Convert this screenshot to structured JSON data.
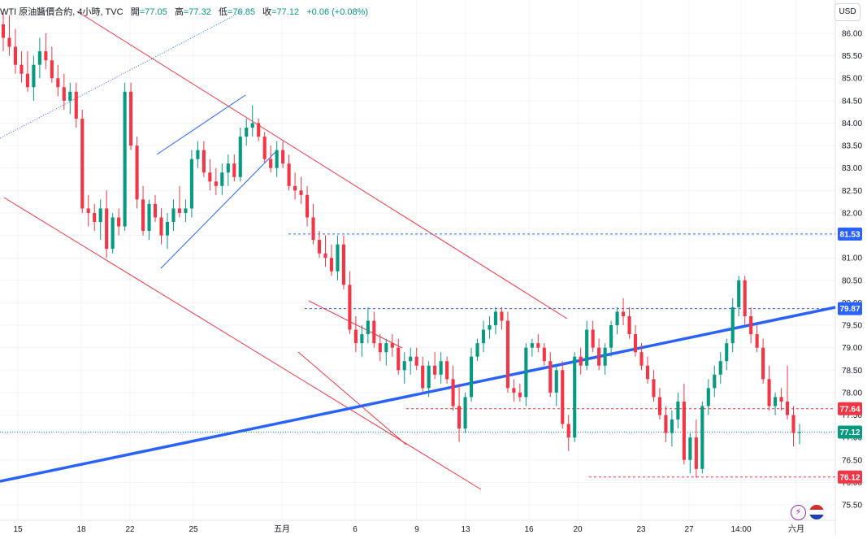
{
  "header": {
    "symbol": "WTI 原油醬價合約, 4小時, TVC",
    "open_label": "開",
    "open": "=77.05",
    "high_label": "高",
    "high": "=77.32",
    "low_label": "低",
    "low": "=76.85",
    "close_label": "收",
    "close": "=77.12",
    "change": "+0.06 (+0.08%)"
  },
  "currency_button": "USD",
  "colors": {
    "up": "#089981",
    "down": "#f23645",
    "trend": "#2962ff",
    "channel": "#f23645",
    "wedge": "#2962ff"
  },
  "icons": [
    "lightning-icon",
    "us-flag-icon"
  ],
  "chart_data": {
    "type": "candlestick",
    "y_ticks": [
      "86.00",
      "85.50",
      "85.00",
      "84.50",
      "84.00",
      "83.50",
      "83.00",
      "82.50",
      "82.00",
      "81.50",
      "81.00",
      "80.50",
      "80.00",
      "79.50",
      "79.00",
      "78.50",
      "78.00",
      "77.50",
      "77.00",
      "76.50",
      "76.00",
      "75.50"
    ],
    "x_ticks": [
      "15",
      "18",
      "22",
      "25",
      "五月",
      "6",
      "9",
      "13",
      "16",
      "20",
      "23",
      "27",
      "14:00",
      "六月"
    ],
    "price_badges": [
      {
        "label": "81.53",
        "value": 81.53,
        "color": "#2962ff",
        "line": "dashed"
      },
      {
        "label": "79.87",
        "value": 79.87,
        "color": "#2962ff",
        "line": "dashed"
      },
      {
        "label": "77.64",
        "value": 77.64,
        "color": "#f23645",
        "line": "dashed"
      },
      {
        "label": "77.12",
        "value": 77.12,
        "color": "#089981",
        "line": "dotted"
      },
      {
        "label": "76.12",
        "value": 76.12,
        "color": "#f23645",
        "line": "dashed"
      }
    ],
    "ylim": [
      75.3,
      86.6
    ],
    "grid": true,
    "candles_ohlc": [
      [
        86.2,
        86.5,
        85.6,
        85.9
      ],
      [
        85.9,
        86.4,
        85.5,
        85.7
      ],
      [
        85.7,
        86.1,
        85.1,
        85.3
      ],
      [
        85.3,
        85.6,
        84.9,
        85.1
      ],
      [
        85.1,
        85.6,
        84.7,
        84.8
      ],
      [
        84.8,
        85.5,
        84.5,
        85.3
      ],
      [
        85.3,
        85.9,
        85.0,
        85.6
      ],
      [
        85.6,
        86.0,
        85.2,
        85.4
      ],
      [
        85.4,
        85.7,
        84.9,
        85.0
      ],
      [
        85.0,
        85.3,
        84.6,
        84.8
      ],
      [
        84.8,
        85.1,
        84.3,
        84.5
      ],
      [
        84.5,
        84.9,
        84.2,
        84.7
      ],
      [
        84.7,
        84.9,
        83.9,
        84.1
      ],
      [
        84.1,
        84.3,
        82.0,
        82.1
      ],
      [
        82.1,
        82.4,
        81.7,
        82.0
      ],
      [
        82.0,
        82.2,
        81.6,
        81.8
      ],
      [
        81.8,
        82.3,
        81.4,
        82.1
      ],
      [
        82.1,
        82.5,
        81.0,
        81.2
      ],
      [
        81.2,
        82.0,
        81.1,
        81.9
      ],
      [
        81.9,
        82.1,
        81.5,
        81.7
      ],
      [
        81.7,
        84.9,
        81.6,
        84.7
      ],
      [
        84.7,
        84.9,
        83.4,
        83.5
      ],
      [
        83.5,
        83.7,
        82.1,
        82.3
      ],
      [
        82.3,
        82.6,
        81.5,
        81.6
      ],
      [
        81.6,
        82.3,
        81.4,
        82.2
      ],
      [
        82.2,
        82.4,
        81.8,
        81.9
      ],
      [
        81.9,
        82.1,
        81.3,
        81.5
      ],
      [
        81.5,
        82.0,
        81.2,
        81.8
      ],
      [
        81.8,
        82.3,
        81.6,
        82.1
      ],
      [
        82.1,
        82.6,
        81.9,
        82.0
      ],
      [
        82.0,
        82.3,
        81.8,
        82.1
      ],
      [
        82.1,
        83.4,
        81.9,
        83.2
      ],
      [
        83.2,
        83.6,
        83.0,
        83.4
      ],
      [
        83.4,
        83.6,
        82.8,
        82.9
      ],
      [
        82.9,
        83.2,
        82.5,
        82.7
      ],
      [
        82.7,
        83.0,
        82.4,
        82.6
      ],
      [
        82.6,
        83.1,
        82.4,
        82.9
      ],
      [
        82.9,
        83.3,
        82.6,
        83.1
      ],
      [
        83.1,
        83.3,
        82.7,
        82.8
      ],
      [
        82.8,
        83.9,
        82.7,
        83.7
      ],
      [
        83.7,
        84.1,
        83.5,
        83.9
      ],
      [
        83.9,
        84.4,
        83.7,
        84.0
      ],
      [
        84.0,
        84.1,
        83.6,
        83.7
      ],
      [
        83.7,
        83.8,
        83.1,
        83.2
      ],
      [
        83.2,
        83.5,
        82.9,
        83.0
      ],
      [
        83.0,
        83.6,
        82.8,
        83.4
      ],
      [
        83.4,
        83.6,
        83.0,
        83.1
      ],
      [
        83.1,
        83.3,
        82.5,
        82.6
      ],
      [
        82.6,
        82.9,
        82.3,
        82.5
      ],
      [
        82.5,
        82.8,
        82.2,
        82.4
      ],
      [
        82.4,
        82.6,
        81.7,
        81.9
      ],
      [
        81.9,
        82.2,
        81.3,
        81.4
      ],
      [
        81.4,
        81.6,
        81.0,
        81.1
      ],
      [
        81.1,
        81.5,
        80.8,
        81.0
      ],
      [
        81.0,
        81.3,
        80.6,
        80.7
      ],
      [
        80.7,
        81.5,
        80.5,
        81.3
      ],
      [
        81.3,
        81.5,
        80.3,
        80.4
      ],
      [
        80.4,
        80.7,
        79.3,
        79.4
      ],
      [
        79.4,
        79.7,
        78.9,
        79.1
      ],
      [
        79.1,
        79.5,
        78.8,
        79.3
      ],
      [
        79.3,
        79.9,
        79.1,
        79.6
      ],
      [
        79.6,
        79.8,
        79.0,
        79.1
      ],
      [
        79.1,
        79.3,
        78.7,
        78.9
      ],
      [
        78.9,
        79.2,
        78.6,
        79.1
      ],
      [
        79.1,
        79.3,
        78.8,
        79.0
      ],
      [
        79.0,
        79.2,
        78.4,
        78.5
      ],
      [
        78.5,
        78.9,
        78.2,
        78.7
      ],
      [
        78.7,
        79.0,
        78.4,
        78.8
      ],
      [
        78.8,
        79.0,
        78.5,
        78.6
      ],
      [
        78.6,
        78.8,
        78.0,
        78.1
      ],
      [
        78.1,
        78.7,
        77.9,
        78.6
      ],
      [
        78.6,
        78.9,
        78.3,
        78.4
      ],
      [
        78.4,
        78.9,
        78.2,
        78.7
      ],
      [
        78.7,
        78.8,
        78.2,
        78.3
      ],
      [
        78.3,
        78.6,
        77.6,
        77.7
      ],
      [
        77.7,
        78.2,
        76.9,
        77.2
      ],
      [
        77.2,
        78.0,
        77.1,
        77.9
      ],
      [
        77.9,
        79.0,
        77.8,
        78.8
      ],
      [
        78.8,
        79.2,
        78.7,
        79.1
      ],
      [
        79.1,
        79.6,
        78.9,
        79.4
      ],
      [
        79.4,
        79.7,
        79.2,
        79.5
      ],
      [
        79.5,
        79.9,
        79.3,
        79.8
      ],
      [
        79.8,
        79.9,
        79.4,
        79.6
      ],
      [
        79.6,
        79.8,
        78.0,
        78.1
      ],
      [
        78.1,
        78.3,
        77.8,
        78.0
      ],
      [
        78.0,
        78.2,
        77.8,
        77.9
      ],
      [
        77.9,
        79.1,
        77.7,
        79.0
      ],
      [
        79.0,
        79.2,
        78.8,
        79.1
      ],
      [
        79.1,
        79.3,
        78.9,
        79.0
      ],
      [
        79.0,
        79.1,
        78.6,
        78.7
      ],
      [
        78.7,
        78.9,
        77.9,
        78.0
      ],
      [
        78.0,
        78.6,
        77.7,
        78.5
      ],
      [
        78.5,
        78.7,
        77.2,
        77.3
      ],
      [
        77.3,
        77.5,
        76.7,
        77.0
      ],
      [
        77.0,
        78.9,
        76.9,
        78.8
      ],
      [
        78.8,
        79.0,
        78.4,
        78.6
      ],
      [
        78.6,
        79.6,
        78.5,
        79.4
      ],
      [
        79.4,
        79.6,
        78.9,
        79.0
      ],
      [
        79.0,
        79.2,
        78.5,
        78.6
      ],
      [
        78.6,
        79.1,
        78.4,
        79.0
      ],
      [
        79.0,
        79.6,
        78.8,
        79.5
      ],
      [
        79.5,
        79.9,
        79.3,
        79.8
      ],
      [
        79.8,
        80.1,
        79.5,
        79.7
      ],
      [
        79.7,
        79.9,
        79.2,
        79.3
      ],
      [
        79.3,
        79.5,
        78.8,
        78.9
      ],
      [
        78.9,
        79.1,
        78.5,
        78.6
      ],
      [
        78.6,
        78.8,
        78.2,
        78.3
      ],
      [
        78.3,
        78.5,
        77.8,
        77.9
      ],
      [
        77.9,
        78.1,
        77.4,
        77.5
      ],
      [
        77.5,
        77.7,
        76.9,
        77.1
      ],
      [
        77.1,
        77.6,
        76.8,
        77.4
      ],
      [
        77.4,
        78.0,
        77.2,
        77.8
      ],
      [
        77.8,
        78.2,
        76.4,
        76.5
      ],
      [
        76.5,
        77.1,
        76.2,
        77.0
      ],
      [
        77.0,
        77.4,
        76.1,
        76.3
      ],
      [
        76.3,
        77.8,
        76.2,
        77.7
      ],
      [
        77.7,
        78.3,
        77.5,
        78.1
      ],
      [
        78.1,
        78.6,
        77.9,
        78.4
      ],
      [
        78.4,
        78.9,
        78.2,
        78.7
      ],
      [
        78.7,
        79.2,
        78.5,
        79.1
      ],
      [
        79.1,
        80.1,
        78.9,
        79.9
      ],
      [
        79.9,
        80.6,
        79.7,
        80.5
      ],
      [
        80.5,
        80.6,
        79.5,
        79.7
      ],
      [
        79.7,
        79.9,
        79.1,
        79.3
      ],
      [
        79.3,
        79.5,
        78.9,
        79.0
      ],
      [
        79.0,
        79.2,
        78.2,
        78.3
      ],
      [
        78.3,
        78.6,
        77.6,
        77.7
      ],
      [
        77.7,
        78.0,
        77.5,
        77.9
      ],
      [
        77.9,
        78.1,
        77.6,
        77.8
      ],
      [
        77.8,
        78.6,
        77.4,
        77.5
      ],
      [
        77.5,
        77.7,
        76.8,
        77.1
      ],
      [
        77.1,
        77.3,
        76.85,
        77.12
      ]
    ]
  }
}
